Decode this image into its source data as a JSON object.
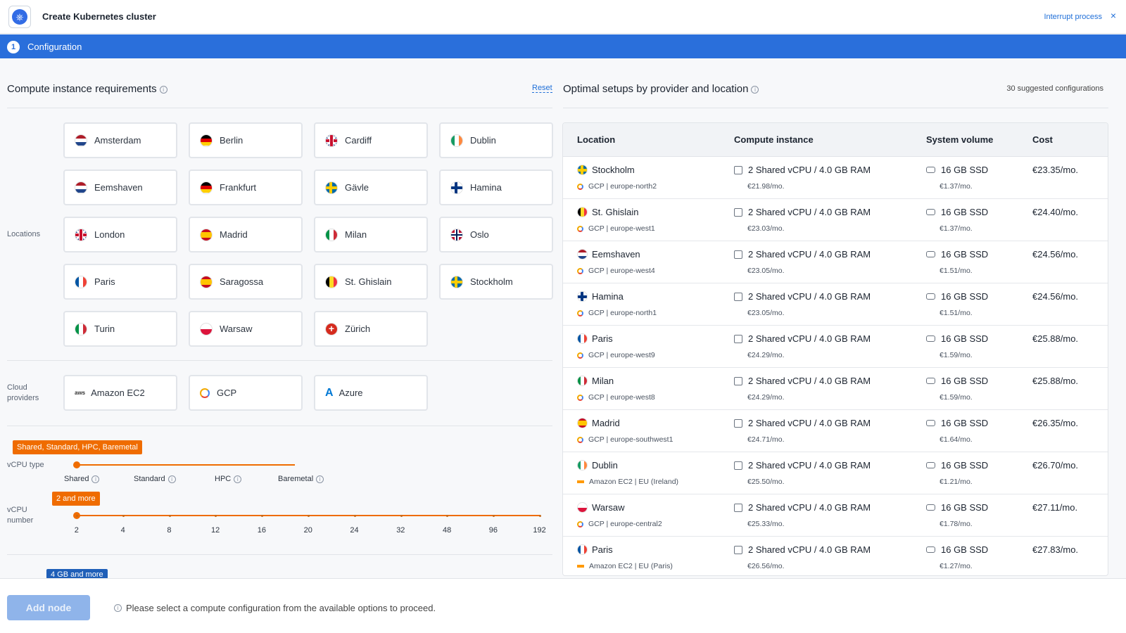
{
  "header": {
    "title": "Create Kubernetes cluster",
    "interrupt_label": "Interrupt process",
    "close_icon": "×",
    "logo_icon": "kubernetes-icon"
  },
  "stepper": {
    "number": "1",
    "label": "Configuration"
  },
  "left": {
    "title": "Compute instance requirements",
    "reset_label": "Reset",
    "locations_label": "Locations",
    "locations": [
      "Amsterdam",
      "Berlin",
      "Cardiff",
      "Dublin",
      "Eemshaven",
      "Frankfurt",
      "Gävle",
      "Hamina",
      "London",
      "Madrid",
      "Milan",
      "Oslo",
      "Paris",
      "Saragossa",
      "St. Ghislain",
      "Stockholm",
      "Turin",
      "Warsaw",
      "Zürich"
    ],
    "cloud_providers_label_1": "Cloud",
    "cloud_providers_label_2": "providers",
    "providers": [
      "Amazon EC2",
      "GCP",
      "Azure"
    ],
    "vcpu_type": {
      "label": "vCPU type",
      "tag": "Shared, Standard, HPC, Baremetal",
      "options": [
        "Shared",
        "Standard",
        "HPC",
        "Baremetal"
      ]
    },
    "vcpu_number": {
      "label_1": "vCPU",
      "label_2": "number",
      "tag": "2 and more",
      "ticks": [
        "2",
        "4",
        "8",
        "12",
        "16",
        "20",
        "24",
        "32",
        "48",
        "96",
        "192"
      ]
    },
    "ram_tag": "4 GB and more"
  },
  "right": {
    "title": "Optimal setups by provider and location",
    "suggested": "30 suggested configurations",
    "columns": [
      "Location",
      "Compute instance",
      "System volume",
      "Cost"
    ],
    "rows": [
      {
        "location": "Stockholm",
        "provider": "GCP | europe-north2",
        "compute": "2 Shared vCPU / 4.0 GB RAM",
        "compute_price": "€21.98/mo.",
        "volume": "16 GB SSD",
        "volume_price": "€1.37/mo.",
        "cost": "€23.35/mo."
      },
      {
        "location": "St. Ghislain",
        "provider": "GCP | europe-west1",
        "compute": "2 Shared vCPU / 4.0 GB RAM",
        "compute_price": "€23.03/mo.",
        "volume": "16 GB SSD",
        "volume_price": "€1.37/mo.",
        "cost": "€24.40/mo."
      },
      {
        "location": "Eemshaven",
        "provider": "GCP | europe-west4",
        "compute": "2 Shared vCPU / 4.0 GB RAM",
        "compute_price": "€23.05/mo.",
        "volume": "16 GB SSD",
        "volume_price": "€1.51/mo.",
        "cost": "€24.56/mo."
      },
      {
        "location": "Hamina",
        "provider": "GCP | europe-north1",
        "compute": "2 Shared vCPU / 4.0 GB RAM",
        "compute_price": "€23.05/mo.",
        "volume": "16 GB SSD",
        "volume_price": "€1.51/mo.",
        "cost": "€24.56/mo."
      },
      {
        "location": "Paris",
        "provider": "GCP | europe-west9",
        "compute": "2 Shared vCPU / 4.0 GB RAM",
        "compute_price": "€24.29/mo.",
        "volume": "16 GB SSD",
        "volume_price": "€1.59/mo.",
        "cost": "€25.88/mo."
      },
      {
        "location": "Milan",
        "provider": "GCP | europe-west8",
        "compute": "2 Shared vCPU / 4.0 GB RAM",
        "compute_price": "€24.29/mo.",
        "volume": "16 GB SSD",
        "volume_price": "€1.59/mo.",
        "cost": "€25.88/mo."
      },
      {
        "location": "Madrid",
        "provider": "GCP | europe-southwest1",
        "compute": "2 Shared vCPU / 4.0 GB RAM",
        "compute_price": "€24.71/mo.",
        "volume": "16 GB SSD",
        "volume_price": "€1.64/mo.",
        "cost": "€26.35/mo."
      },
      {
        "location": "Dublin",
        "provider": "Amazon EC2 | EU (Ireland)",
        "compute": "2 Shared vCPU / 4.0 GB RAM",
        "compute_price": "€25.50/mo.",
        "volume": "16 GB SSD",
        "volume_price": "€1.21/mo.",
        "cost": "€26.70/mo."
      },
      {
        "location": "Warsaw",
        "provider": "GCP | europe-central2",
        "compute": "2 Shared vCPU / 4.0 GB RAM",
        "compute_price": "€25.33/mo.",
        "volume": "16 GB SSD",
        "volume_price": "€1.78/mo.",
        "cost": "€27.11/mo."
      },
      {
        "location": "Paris",
        "provider": "Amazon EC2 | EU (Paris)",
        "compute": "2 Shared vCPU / 4.0 GB RAM",
        "compute_price": "€26.56/mo.",
        "volume": "16 GB SSD",
        "volume_price": "€1.27/mo.",
        "cost": "€27.83/mo."
      }
    ]
  },
  "footer": {
    "add_node_label": "Add node",
    "hint": "Please select a compute configuration from the available options to proceed."
  },
  "colors": {
    "accent": "#2a6fdb",
    "slider": "#ef6c00",
    "ram_tag": "#1f5fb8"
  }
}
